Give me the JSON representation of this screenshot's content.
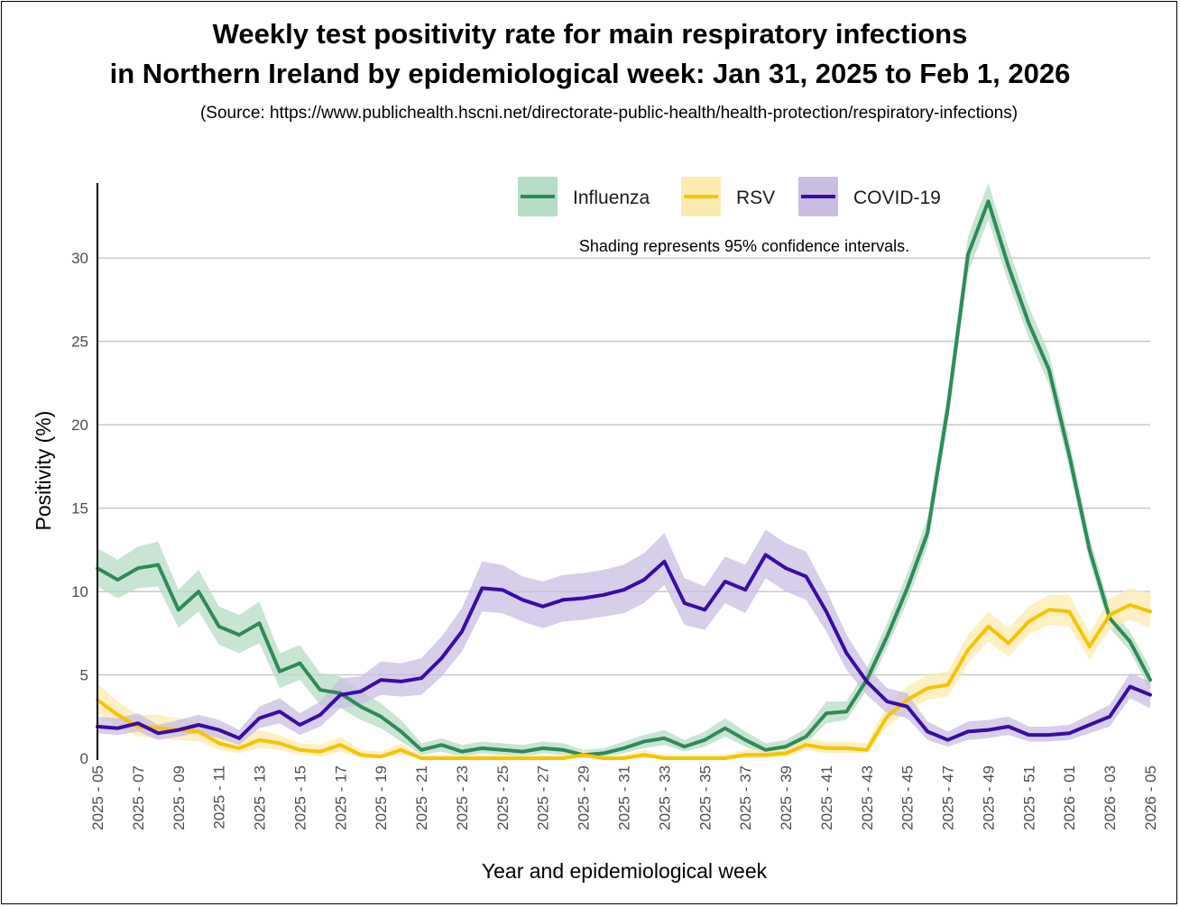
{
  "title_line1": "Weekly test positivity rate for main respiratory infections",
  "title_line2": "in Northern Ireland by epidemiological week: Jan 31, 2025 to Feb 1, 2026",
  "source": "(Source: https://www.publichealth.hscni.net/directorate-public-health/health-protection/respiratory-infections)",
  "chart_data": {
    "type": "line",
    "title": "Weekly test positivity rate for main respiratory infections in Northern Ireland by epidemiological week: Jan 31, 2025 to Feb 1, 2026",
    "xlabel": "Year and epidemiological week",
    "ylabel": "Positivity (%)",
    "ylim": [
      0,
      34.5
    ],
    "yticks": [
      0,
      5,
      10,
      15,
      20,
      25,
      30
    ],
    "grid": "horizontal",
    "legend_position": "top",
    "annotation": "Shading represents 95% confidence intervals.",
    "x": [
      "2025 - 05",
      "2025 - 06",
      "2025 - 07",
      "2025 - 08",
      "2025 - 09",
      "2025 - 10",
      "2025 - 11",
      "2025 - 12",
      "2025 - 13",
      "2025 - 14",
      "2025 - 15",
      "2025 - 16",
      "2025 - 17",
      "2025 - 18",
      "2025 - 19",
      "2025 - 20",
      "2025 - 21",
      "2025 - 22",
      "2025 - 23",
      "2025 - 24",
      "2025 - 25",
      "2025 - 26",
      "2025 - 27",
      "2025 - 28",
      "2025 - 29",
      "2025 - 30",
      "2025 - 31",
      "2025 - 32",
      "2025 - 33",
      "2025 - 34",
      "2025 - 35",
      "2025 - 36",
      "2025 - 37",
      "2025 - 38",
      "2025 - 39",
      "2025 - 40",
      "2025 - 41",
      "2025 - 42",
      "2025 - 43",
      "2025 - 44",
      "2025 - 45",
      "2025 - 46",
      "2025 - 47",
      "2025 - 48",
      "2025 - 49",
      "2025 - 50",
      "2025 - 51",
      "2025 - 52",
      "2026 - 01",
      "2026 - 02",
      "2026 - 03",
      "2026 - 04",
      "2026 - 05"
    ],
    "xtick_labels": [
      "2025 - 05",
      "2025 - 07",
      "2025 - 09",
      "2025 - 11",
      "2025 - 13",
      "2025 - 15",
      "2025 - 17",
      "2025 - 19",
      "2025 - 21",
      "2025 - 23",
      "2025 - 25",
      "2025 - 27",
      "2025 - 29",
      "2025 - 31",
      "2025 - 33",
      "2025 - 35",
      "2025 - 37",
      "2025 - 39",
      "2025 - 41",
      "2025 - 43",
      "2025 - 45",
      "2025 - 47",
      "2025 - 49",
      "2025 - 51",
      "2026 - 01",
      "2026 - 03",
      "2026 - 05"
    ],
    "series": [
      {
        "name": "Influenza",
        "color": "#2e8b57",
        "band_color": "#b5dcc5",
        "values": [
          11.4,
          10.7,
          11.4,
          11.6,
          8.9,
          10.0,
          7.9,
          7.4,
          8.1,
          5.2,
          5.7,
          4.1,
          3.9,
          3.1,
          2.5,
          1.6,
          0.5,
          0.8,
          0.4,
          0.6,
          0.5,
          0.4,
          0.6,
          0.5,
          0.2,
          0.3,
          0.6,
          1.0,
          1.2,
          0.7,
          1.1,
          1.8,
          1.1,
          0.5,
          0.7,
          1.3,
          2.7,
          2.8,
          4.7,
          7.3,
          10.2,
          13.5,
          21.0,
          30.2,
          33.4,
          29.5,
          26.1,
          23.3,
          18.2,
          12.5,
          8.4,
          7.0,
          4.7
        ],
        "lower": [
          10.3,
          9.6,
          10.2,
          10.3,
          7.8,
          8.8,
          6.8,
          6.3,
          6.9,
          4.2,
          4.7,
          3.2,
          3.0,
          2.3,
          1.8,
          1.0,
          0.2,
          0.4,
          0.1,
          0.3,
          0.2,
          0.1,
          0.3,
          0.2,
          0.0,
          0.1,
          0.3,
          0.6,
          0.8,
          0.4,
          0.7,
          1.3,
          0.7,
          0.2,
          0.4,
          0.9,
          2.1,
          2.3,
          4.1,
          6.6,
          9.4,
          12.7,
          20.1,
          29.1,
          32.3,
          28.5,
          25.2,
          22.4,
          17.4,
          11.8,
          7.8,
          6.4,
          4.1
        ],
        "upper": [
          12.6,
          11.9,
          12.7,
          13.0,
          10.1,
          11.3,
          9.1,
          8.6,
          9.4,
          6.3,
          6.8,
          5.1,
          4.9,
          4.0,
          3.3,
          2.3,
          0.9,
          1.2,
          0.8,
          1.0,
          0.9,
          0.8,
          1.0,
          0.9,
          0.5,
          0.6,
          1.0,
          1.4,
          1.7,
          1.1,
          1.6,
          2.4,
          1.6,
          0.9,
          1.1,
          1.8,
          3.4,
          3.4,
          5.4,
          8.1,
          11.1,
          14.4,
          22.0,
          31.3,
          34.5,
          30.6,
          27.1,
          24.3,
          19.1,
          13.3,
          9.1,
          7.6,
          5.4
        ]
      },
      {
        "name": "RSV",
        "color": "#f5c400",
        "band_color": "#fcebb0",
        "values": [
          3.5,
          2.6,
          1.9,
          1.8,
          1.7,
          1.6,
          0.9,
          0.6,
          1.1,
          0.9,
          0.5,
          0.4,
          0.8,
          0.2,
          0.1,
          0.5,
          0.0,
          0.0,
          0.0,
          0.0,
          0.0,
          0.0,
          0.0,
          0.0,
          0.2,
          0.0,
          0.0,
          0.2,
          0.0,
          0.0,
          0.0,
          0.0,
          0.2,
          0.2,
          0.3,
          0.8,
          0.6,
          0.6,
          0.5,
          2.5,
          3.5,
          4.2,
          4.4,
          6.5,
          7.9,
          6.9,
          8.2,
          8.9,
          8.8,
          6.7,
          8.6,
          9.2,
          8.8
        ],
        "lower": [
          2.7,
          1.9,
          1.3,
          1.2,
          1.1,
          1.0,
          0.5,
          0.3,
          0.6,
          0.5,
          0.2,
          0.1,
          0.4,
          0.0,
          0.0,
          0.2,
          0.0,
          0.0,
          0.0,
          0.0,
          0.0,
          0.0,
          0.0,
          0.0,
          0.0,
          0.0,
          0.0,
          0.0,
          0.0,
          0.0,
          0.0,
          0.0,
          0.0,
          0.0,
          0.1,
          0.5,
          0.3,
          0.3,
          0.3,
          1.9,
          2.8,
          3.5,
          3.7,
          5.7,
          7.0,
          6.1,
          7.4,
          8.0,
          7.9,
          5.9,
          7.7,
          8.3,
          7.8
        ],
        "upper": [
          4.5,
          3.4,
          2.6,
          2.6,
          2.4,
          2.3,
          1.4,
          1.1,
          1.7,
          1.4,
          0.9,
          0.8,
          1.3,
          0.5,
          0.4,
          0.9,
          0.2,
          0.2,
          0.2,
          0.2,
          0.2,
          0.2,
          0.2,
          0.2,
          0.5,
          0.2,
          0.2,
          0.5,
          0.2,
          0.2,
          0.2,
          0.2,
          0.5,
          0.5,
          0.6,
          1.2,
          1.0,
          1.0,
          0.9,
          3.2,
          4.3,
          5.0,
          5.2,
          7.4,
          8.8,
          7.8,
          9.1,
          9.8,
          9.8,
          7.5,
          9.6,
          10.2,
          9.9
        ]
      },
      {
        "name": "COVID-19",
        "color": "#3a0ca3",
        "band_color": "#c9bde3",
        "values": [
          1.9,
          1.8,
          2.1,
          1.5,
          1.7,
          2.0,
          1.7,
          1.2,
          2.4,
          2.8,
          2.0,
          2.6,
          3.8,
          4.0,
          4.7,
          4.6,
          4.8,
          6.0,
          7.6,
          10.2,
          10.1,
          9.5,
          9.1,
          9.5,
          9.6,
          9.8,
          10.1,
          10.7,
          11.8,
          9.3,
          8.9,
          10.6,
          10.1,
          12.2,
          11.4,
          10.9,
          8.8,
          6.3,
          4.6,
          3.4,
          3.1,
          1.6,
          1.1,
          1.6,
          1.7,
          1.9,
          1.4,
          1.4,
          1.5,
          2.0,
          2.5,
          4.3,
          3.8
        ],
        "lower": [
          1.5,
          1.4,
          1.6,
          1.1,
          1.3,
          1.5,
          1.2,
          0.8,
          1.8,
          2.1,
          1.4,
          1.9,
          3.0,
          3.2,
          3.8,
          3.7,
          3.8,
          4.9,
          6.4,
          8.8,
          8.7,
          8.2,
          7.8,
          8.2,
          8.3,
          8.5,
          8.7,
          9.3,
          10.4,
          8.0,
          7.7,
          9.3,
          8.7,
          10.8,
          10.0,
          9.5,
          7.6,
          5.3,
          3.8,
          2.7,
          2.4,
          1.1,
          0.7,
          1.1,
          1.2,
          1.4,
          1.0,
          1.0,
          1.1,
          1.5,
          1.9,
          3.6,
          3.0
        ],
        "upper": [
          2.5,
          2.4,
          2.7,
          2.0,
          2.3,
          2.6,
          2.3,
          1.7,
          3.1,
          3.6,
          2.7,
          3.4,
          4.8,
          4.9,
          5.8,
          5.7,
          6.0,
          7.3,
          9.0,
          11.8,
          11.6,
          10.9,
          10.6,
          11.0,
          11.1,
          11.3,
          11.6,
          12.3,
          13.5,
          10.8,
          10.3,
          12.1,
          11.6,
          13.7,
          12.9,
          12.4,
          10.1,
          7.4,
          5.5,
          4.2,
          3.9,
          2.2,
          1.6,
          2.2,
          2.3,
          2.5,
          1.9,
          1.9,
          2.0,
          2.6,
          3.2,
          5.1,
          4.6
        ]
      }
    ]
  }
}
